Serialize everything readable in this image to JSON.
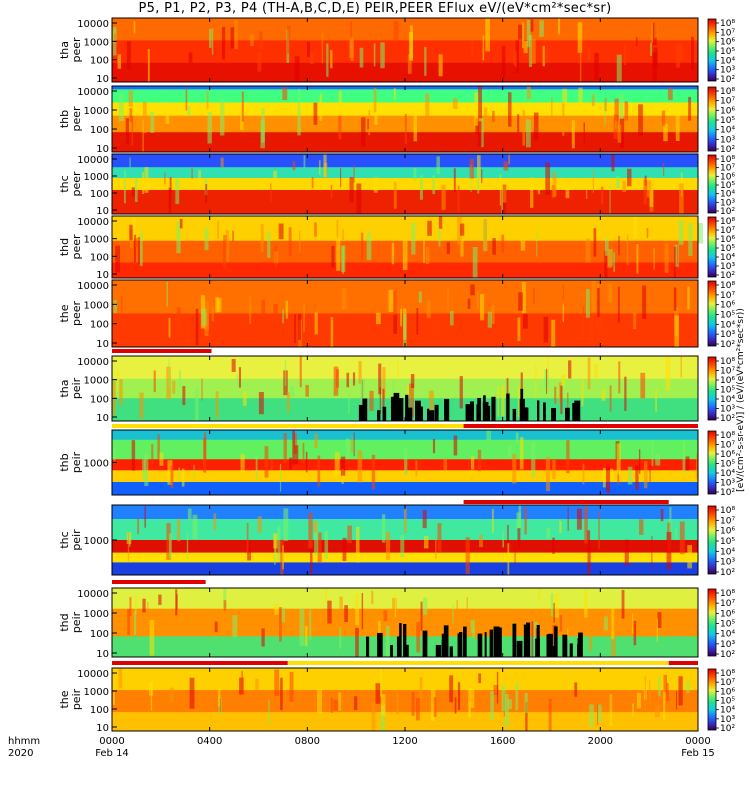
{
  "title": "P5, P1, P2, P3, P4 (TH-A,B,C,D,E) PEIR,PEER EFlux eV/(eV*cm²*sec*sr)",
  "chart_data": {
    "type": "heatmap",
    "x_axis": {
      "label_lines": [
        "hhmm",
        "2020"
      ],
      "tick_labels": [
        "0000",
        "0400",
        "0800",
        "1200",
        "1600",
        "2000",
        "0000"
      ],
      "date_labels": [
        "Feb 14",
        "Feb 15"
      ],
      "range_hours": [
        0,
        24
      ]
    },
    "colorbar_tick_labels": [
      "10²",
      "10³",
      "10⁴",
      "10⁵",
      "10⁶",
      "10⁷",
      "10⁸"
    ],
    "colorbar_unit": "[eV/(cm²-s-sr-eV)] / (eV/(eV*cm²*sec*sr))",
    "panels": [
      {
        "line1": "tha",
        "line2": "peer",
        "yticks": [
          "10",
          "100",
          "1000",
          "10000"
        ]
      },
      {
        "line1": "thb",
        "line2": "peer",
        "yticks": [
          "10",
          "100",
          "1000",
          "10000"
        ]
      },
      {
        "line1": "thc",
        "line2": "peer",
        "yticks": [
          "10",
          "100",
          "1000",
          "10000"
        ]
      },
      {
        "line1": "thd",
        "line2": "peer",
        "yticks": [
          "10",
          "100",
          "1000",
          "10000"
        ]
      },
      {
        "line1": "the",
        "line2": "peer",
        "yticks": [
          "10",
          "100",
          "1000",
          "10000"
        ]
      },
      {
        "line1": "tha",
        "line2": "peir",
        "yticks": [
          "10",
          "100",
          "1000",
          "10000"
        ]
      },
      {
        "line1": "thb",
        "line2": "peir",
        "yticks": [
          "1000"
        ]
      },
      {
        "line1": "thc",
        "line2": "peir",
        "yticks": [
          "1000"
        ]
      },
      {
        "line1": "thd",
        "line2": "peir",
        "yticks": [
          "10",
          "100",
          "1000",
          "10000"
        ]
      },
      {
        "line1": "the",
        "line2": "peir",
        "yticks": [
          "10",
          "100",
          "1000",
          "10000"
        ]
      }
    ]
  }
}
